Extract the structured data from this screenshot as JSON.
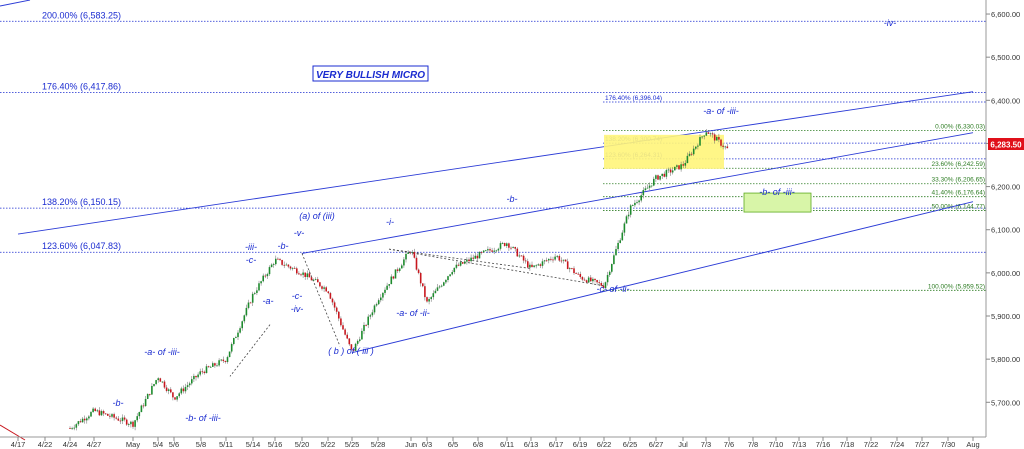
{
  "chart_data": {
    "type": "candlestick",
    "instrument_last": "6,283.50",
    "y_axis": {
      "side": "right",
      "range": [
        5620,
        6620
      ],
      "ticks": [
        5700,
        5800,
        5900,
        6000,
        6100,
        6200,
        6300,
        6400,
        6500,
        6600
      ],
      "tick_labels": [
        "5,700.00",
        "5,800.00",
        "5,900.00",
        "6,000.00",
        "6,100.00",
        "6,200.00",
        "6,300.00",
        "6,400.00",
        "6,500.00",
        "6,600.00"
      ]
    },
    "x_axis": {
      "labels": [
        "4/17",
        "4/22",
        "4/24",
        "4/27",
        "May",
        "5/4",
        "5/6",
        "5/8",
        "5/11",
        "5/14",
        "5/16",
        "5/20",
        "5/22",
        "5/25",
        "5/28",
        "Jun",
        "6/3",
        "6/5",
        "6/8",
        "6/11",
        "6/13",
        "6/17",
        "6/19",
        "6/22",
        "6/25",
        "6/27",
        "Jul",
        "7/3",
        "7/6",
        "7/8",
        "7/10",
        "7/13",
        "7/16",
        "7/18",
        "7/22",
        "7/24",
        "7/27",
        "7/30",
        "Aug"
      ]
    },
    "price_path": [
      {
        "date": "4/24",
        "price": 5640
      },
      {
        "date": "4/27",
        "price": 5680
      },
      {
        "date": "May",
        "price": 5650
      },
      {
        "date": "5/4",
        "price": 5760
      },
      {
        "date": "5/6",
        "price": 5710
      },
      {
        "date": "5/8",
        "price": 5770
      },
      {
        "date": "5/11",
        "price": 5800
      },
      {
        "date": "5/14",
        "price": 5950
      },
      {
        "date": "5/16",
        "price": 6030
      },
      {
        "date": "5/20",
        "price": 6000
      },
      {
        "date": "5/22",
        "price": 5960
      },
      {
        "date": "5/25",
        "price": 5815
      },
      {
        "date": "5/28",
        "price": 5940
      },
      {
        "date": "Jun",
        "price": 6055
      },
      {
        "date": "6/3",
        "price": 5930
      },
      {
        "date": "6/5",
        "price": 6010
      },
      {
        "date": "6/8",
        "price": 6040
      },
      {
        "date": "6/11",
        "price": 6070
      },
      {
        "date": "6/13",
        "price": 6010
      },
      {
        "date": "6/17",
        "price": 6040
      },
      {
        "date": "6/19",
        "price": 5990
      },
      {
        "date": "6/22",
        "price": 5970
      },
      {
        "date": "6/25",
        "price": 6150
      },
      {
        "date": "6/27",
        "price": 6220
      },
      {
        "date": "Jul",
        "price": 6250
      },
      {
        "date": "7/3",
        "price": 6330
      },
      {
        "date": "7/6",
        "price": 6283.5
      }
    ],
    "horizontal_levels": [
      {
        "label": "200.00% (6,583.25)",
        "value": 6583.25,
        "group": "blue"
      },
      {
        "label": "176.40% (6,417.86)",
        "value": 6417.86,
        "group": "blue"
      },
      {
        "label": "138.20% (6,150.15)",
        "value": 6150.15,
        "group": "blue"
      },
      {
        "label": "123.60% (6,047.83)",
        "value": 6047.83,
        "group": "blue"
      },
      {
        "label": "176.40% (6,396.04)",
        "value": 6396.04,
        "group": "navy"
      },
      {
        "label": "138.20% (6,300.74)",
        "value": 6300.74,
        "group": "navy"
      },
      {
        "label": "123.60% (6,264.31)",
        "value": 6264.31,
        "group": "navy"
      },
      {
        "label": "0.00% (6,330.03)",
        "value": 6330.03,
        "group": "green"
      },
      {
        "label": "23.60% (6,242.59)",
        "value": 6242.59,
        "group": "green"
      },
      {
        "label": "33.30% (6,206.65)",
        "value": 6206.65,
        "group": "green"
      },
      {
        "label": "41.40% (6,176.64)",
        "value": 6176.64,
        "group": "green"
      },
      {
        "label": "50.00% (6,144.77)",
        "value": 6144.77,
        "group": "green"
      },
      {
        "label": "100.00% (5,959.52)",
        "value": 5959.52,
        "group": "green"
      }
    ],
    "trendlines": [
      {
        "from": {
          "date": "4/17",
          "price": 6090
        },
        "to": {
          "date": "Aug",
          "price": 6420
        }
      },
      {
        "from": {
          "date": "5/20",
          "price": 6045
        },
        "to": {
          "date": "Aug",
          "price": 6325
        }
      },
      {
        "from": {
          "date": "5/25",
          "price": 5815
        },
        "to": {
          "date": "Aug",
          "price": 6165
        }
      }
    ],
    "wave_labels": [
      "-iv-",
      "-a- of -iii-",
      "(a) of (iii)",
      "-i-",
      "-b-",
      "-iii-",
      "-c-",
      "-b-",
      "-v-",
      "-a-",
      "-c-",
      "-iv-",
      "-a- of -ii-",
      "( b ) of ( iii )",
      "-c- of -ii-",
      "-a- of -iii-",
      "-b-",
      "-b- of -iii-",
      "-b- of -iii-"
    ],
    "annotation_box": "VERY BULLISH MICRO",
    "colors": {
      "up": "#1e8a2e",
      "down": "#c8171e",
      "blue_level": "#1a2bd0",
      "green_level": "#2e7d24",
      "highlight_yellow": "#fff57a",
      "highlight_green": "#d8f5a8",
      "last_price_bg": "#e0101a"
    }
  }
}
